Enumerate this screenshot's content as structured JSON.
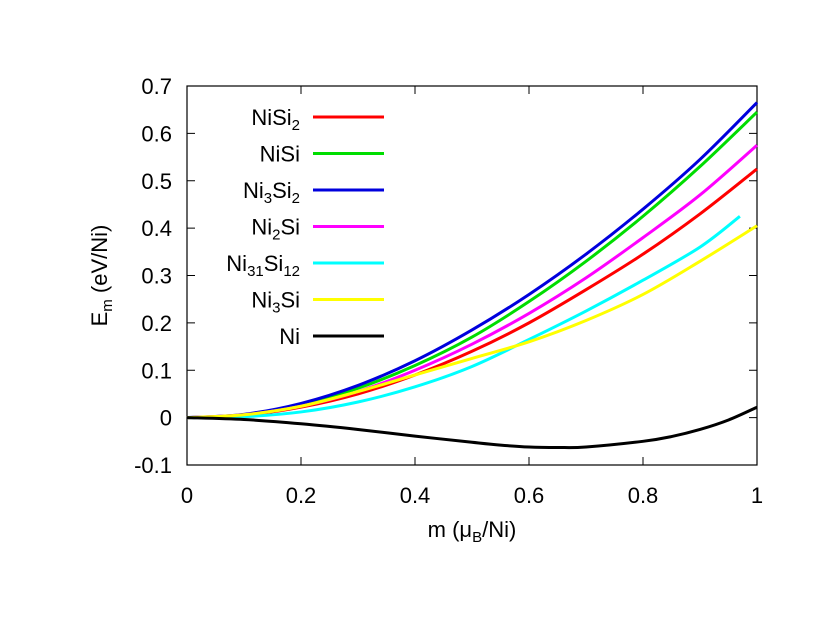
{
  "chart_data": {
    "type": "line",
    "xlabel": {
      "main": "m (",
      "sym": "μ",
      "sub": "B",
      "tail": "/Ni)"
    },
    "ylabel": {
      "main": "E",
      "sub": "m",
      "tail": " (eV/Ni)"
    },
    "xlim": [
      0,
      1
    ],
    "ylim": [
      -0.1,
      0.7
    ],
    "xticks": [
      0,
      0.2,
      0.4,
      0.6,
      0.8,
      1
    ],
    "xtick_labels": [
      "0",
      "0.2",
      "0.4",
      "0.6",
      "0.8",
      "1"
    ],
    "yticks": [
      -0.1,
      0,
      0.1,
      0.2,
      0.3,
      0.4,
      0.5,
      0.6,
      0.7
    ],
    "ytick_labels": [
      "-0.1",
      "0",
      "0.1",
      "0.2",
      "0.3",
      "0.4",
      "0.5",
      "0.6",
      "0.7"
    ],
    "grid": false,
    "legend_position": "top-left",
    "series": [
      {
        "name": "NiSi2",
        "label_parts": [
          [
            "Ni",
            ""
          ],
          [
            "Si",
            ""
          ],
          [
            "2",
            "sub"
          ]
        ],
        "color": "#ff0000",
        "x": [
          0,
          0.1,
          0.2,
          0.3,
          0.4,
          0.5,
          0.6,
          0.7,
          0.8,
          0.9,
          1.0
        ],
        "y": [
          0,
          0.005,
          0.022,
          0.05,
          0.09,
          0.14,
          0.2,
          0.27,
          0.345,
          0.43,
          0.525
        ]
      },
      {
        "name": "NiSi",
        "label_parts": [
          [
            "NiSi",
            ""
          ]
        ],
        "color": "#00dd00",
        "x": [
          0,
          0.1,
          0.2,
          0.3,
          0.4,
          0.5,
          0.6,
          0.7,
          0.8,
          0.9,
          1.0
        ],
        "y": [
          0,
          0.006,
          0.027,
          0.062,
          0.11,
          0.17,
          0.245,
          0.33,
          0.425,
          0.53,
          0.645
        ]
      },
      {
        "name": "Ni3Si2",
        "label_parts": [
          [
            "Ni",
            ""
          ],
          [
            "3",
            "sub"
          ],
          [
            "Si",
            ""
          ],
          [
            "2",
            "sub"
          ]
        ],
        "color": "#0000dd",
        "x": [
          0,
          0.1,
          0.2,
          0.3,
          0.4,
          0.5,
          0.6,
          0.7,
          0.8,
          0.9,
          1.0
        ],
        "y": [
          0,
          0.007,
          0.03,
          0.068,
          0.12,
          0.185,
          0.26,
          0.345,
          0.44,
          0.545,
          0.665
        ]
      },
      {
        "name": "Ni2Si",
        "label_parts": [
          [
            "Ni",
            ""
          ],
          [
            "2",
            "sub"
          ],
          [
            "Si",
            ""
          ]
        ],
        "color": "#ff00ff",
        "x": [
          0,
          0.1,
          0.2,
          0.3,
          0.4,
          0.5,
          0.6,
          0.7,
          0.8,
          0.9,
          1.0
        ],
        "y": [
          0,
          0.006,
          0.024,
          0.055,
          0.1,
          0.155,
          0.22,
          0.295,
          0.38,
          0.47,
          0.575
        ]
      },
      {
        "name": "Ni31Si12",
        "label_parts": [
          [
            "Ni",
            ""
          ],
          [
            "31",
            "sub"
          ],
          [
            "Si",
            ""
          ],
          [
            "12",
            "sub"
          ]
        ],
        "color": "#00ffff",
        "x": [
          0,
          0.1,
          0.2,
          0.3,
          0.4,
          0.5,
          0.6,
          0.7,
          0.8,
          0.9,
          0.97
        ],
        "y": [
          0,
          0.002,
          0.012,
          0.033,
          0.065,
          0.108,
          0.165,
          0.225,
          0.29,
          0.36,
          0.425
        ]
      },
      {
        "name": "Ni3Si",
        "label_parts": [
          [
            "Ni",
            ""
          ],
          [
            "3",
            "sub"
          ],
          [
            "Si",
            ""
          ]
        ],
        "color": "#ffff00",
        "x": [
          0,
          0.1,
          0.2,
          0.3,
          0.4,
          0.5,
          0.6,
          0.7,
          0.8,
          0.9,
          1.0
        ],
        "y": [
          0,
          0.006,
          0.024,
          0.055,
          0.09,
          0.125,
          0.16,
          0.205,
          0.26,
          0.33,
          0.405
        ]
      },
      {
        "name": "Ni",
        "label_parts": [
          [
            "Ni",
            ""
          ]
        ],
        "color": "#000000",
        "x": [
          0,
          0.1,
          0.2,
          0.3,
          0.4,
          0.5,
          0.55,
          0.6,
          0.65,
          0.7,
          0.8,
          0.85,
          0.9,
          0.95,
          1.0
        ],
        "y": [
          0,
          -0.004,
          -0.013,
          -0.025,
          -0.039,
          -0.052,
          -0.058,
          -0.062,
          -0.063,
          -0.062,
          -0.05,
          -0.04,
          -0.025,
          -0.005,
          0.022
        ]
      }
    ]
  }
}
